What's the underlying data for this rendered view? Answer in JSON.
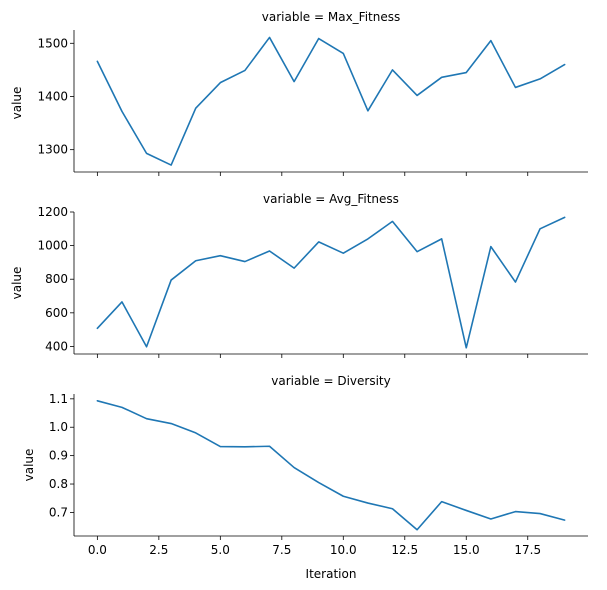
{
  "chart_data": {
    "type": "line",
    "xlabel": "Iteration",
    "x": [
      0,
      1,
      2,
      3,
      4,
      5,
      6,
      7,
      8,
      9,
      10,
      11,
      12,
      13,
      14,
      15,
      16,
      17,
      18,
      19
    ],
    "xlim": [
      -0.95,
      19.95
    ],
    "xticks": [
      "0.0",
      "2.5",
      "5.0",
      "7.5",
      "10.0",
      "12.5",
      "15.0",
      "17.5"
    ],
    "xtick_values": [
      0,
      2.5,
      5,
      7.5,
      10,
      12.5,
      15,
      17.5
    ],
    "line_color": "#1f77b4",
    "panels": [
      {
        "title": "variable = Max_Fitness",
        "ylabel": "value",
        "ylim": [
          1258,
          1525
        ],
        "yticks": [
          "1300",
          "1400",
          "1500"
        ],
        "ytick_values": [
          1300,
          1400,
          1500
        ],
        "values": [
          1466,
          1372,
          1293,
          1271,
          1378,
          1426,
          1449,
          1511,
          1428,
          1509,
          1481,
          1373,
          1450,
          1402,
          1436,
          1445,
          1505,
          1417,
          1433,
          1460
        ]
      },
      {
        "title": "variable = Avg_Fitness",
        "ylabel": "value",
        "ylim": [
          355,
          1200
        ],
        "yticks": [
          "400",
          "600",
          "800",
          "1000",
          "1200"
        ],
        "ytick_values": [
          400,
          600,
          800,
          1000,
          1200
        ],
        "values": [
          508,
          665,
          398,
          795,
          910,
          940,
          905,
          968,
          866,
          1022,
          955,
          1040,
          1144,
          964,
          1040,
          392,
          994,
          783,
          1100,
          1168
        ]
      },
      {
        "title": "variable = Diversity",
        "ylabel": "value",
        "ylim": [
          0.617,
          1.117
        ],
        "yticks": [
          "0.7",
          "0.8",
          "0.9",
          "1.0",
          "1.1"
        ],
        "ytick_values": [
          0.7,
          0.8,
          0.9,
          1.0,
          1.1
        ],
        "values": [
          1.093,
          1.07,
          1.03,
          1.013,
          0.98,
          0.932,
          0.931,
          0.933,
          0.858,
          0.805,
          0.757,
          0.733,
          0.713,
          0.639,
          0.738,
          0.707,
          0.677,
          0.703,
          0.696,
          0.673
        ]
      }
    ]
  }
}
